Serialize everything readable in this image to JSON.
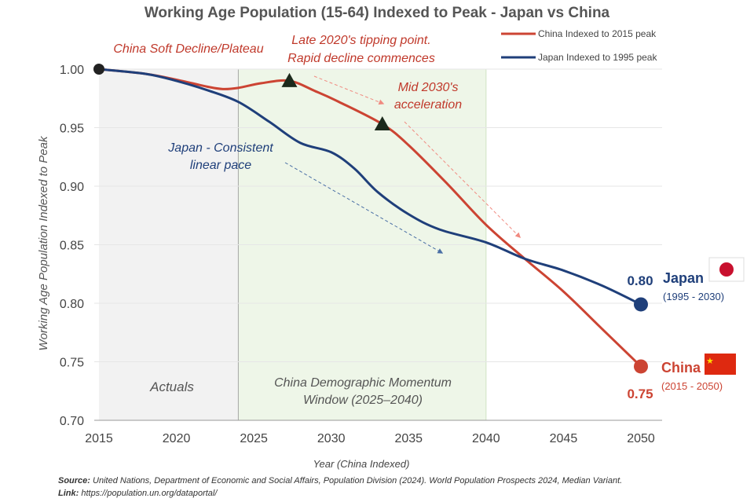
{
  "chart_data": {
    "type": "line",
    "title": "Working Age Population (15-64) Indexed to Peak - Japan vs China",
    "xlabel": "Year (China Indexed)",
    "ylabel": "Working Age Population Indexed to Peak",
    "xlim": [
      2015,
      2052
    ],
    "ylim": [
      0.7,
      1.0
    ],
    "xticks": [
      2015,
      2020,
      2025,
      2030,
      2035,
      2040,
      2045,
      2050
    ],
    "yticks": [
      "0.70",
      "0.75",
      "0.80",
      "0.85",
      "0.90",
      "0.95",
      "1.00"
    ],
    "grid": "horizontal",
    "legend_position": "top-right",
    "series": [
      {
        "name": "China Indexed to 2015 peak",
        "color": "#cc4433",
        "x": [
          2015,
          2018,
          2020,
          2022,
          2023,
          2024,
          2025.5,
          2027.3,
          2029,
          2030.5,
          2033.3,
          2035,
          2037.5,
          2040,
          2042.5,
          2045,
          2047.5,
          2050
        ],
        "y": [
          1.0,
          0.996,
          0.991,
          0.985,
          0.983,
          0.984,
          0.988,
          0.99,
          0.981,
          0.972,
          0.953,
          0.935,
          0.902,
          0.867,
          0.838,
          0.81,
          0.778,
          0.746
        ]
      },
      {
        "name": "Japan Indexed to 1995 peak",
        "color": "#1f3f7a",
        "x": [
          2015,
          2018,
          2020,
          2022,
          2024,
          2026,
          2028,
          2030,
          2031.5,
          2033,
          2035,
          2037,
          2040,
          2042.5,
          2045,
          2047.5,
          2050
        ],
        "y": [
          1.0,
          0.996,
          0.99,
          0.982,
          0.972,
          0.955,
          0.937,
          0.929,
          0.915,
          0.895,
          0.876,
          0.863,
          0.852,
          0.838,
          0.828,
          0.815,
          0.799
        ]
      }
    ],
    "end_labels": [
      {
        "series": "Japan",
        "value": "0.80",
        "name": "Japan",
        "range": "(1995 - 2030)",
        "color": "#1f3f7a"
      },
      {
        "series": "China",
        "value": "0.75",
        "name": "China",
        "range": "(2015 - 2050)",
        "color": "#cc4433"
      }
    ],
    "start_marker": {
      "x": 2015,
      "y": 1.0
    },
    "triangle_markers": [
      {
        "x": 2027.3,
        "y": 0.99
      },
      {
        "x": 2033.3,
        "y": 0.953
      }
    ],
    "shaded_regions": [
      {
        "from": 2015,
        "to": 2024,
        "color": "#f2f2f2",
        "label": "Actuals"
      },
      {
        "from": 2024,
        "to": 2040,
        "color": "#eef6e8",
        "label_line1": "China Demographic Momentum",
        "label_line2": "Window (2025–2040)"
      }
    ],
    "annotations": [
      {
        "text": "China Soft Decline/Plateau",
        "color": "#c0392b"
      },
      {
        "text": "Late 2020's tipping point.",
        "text2": "Rapid decline commences",
        "color": "#c0392b"
      },
      {
        "text": "Mid 2030's",
        "text2": "acceleration",
        "color": "#c0392b"
      },
      {
        "text": "Japan - Consistent",
        "text2": "linear pace",
        "color": "#1f3f7a"
      }
    ]
  },
  "source": {
    "label": "Source:",
    "text": " United Nations, Department of Economic and Social Affairs, Population Division (2024). World Population Prospects 2024, Median Variant.",
    "link_label": "Link:",
    "link": " https://population.un.org/dataportal/"
  }
}
